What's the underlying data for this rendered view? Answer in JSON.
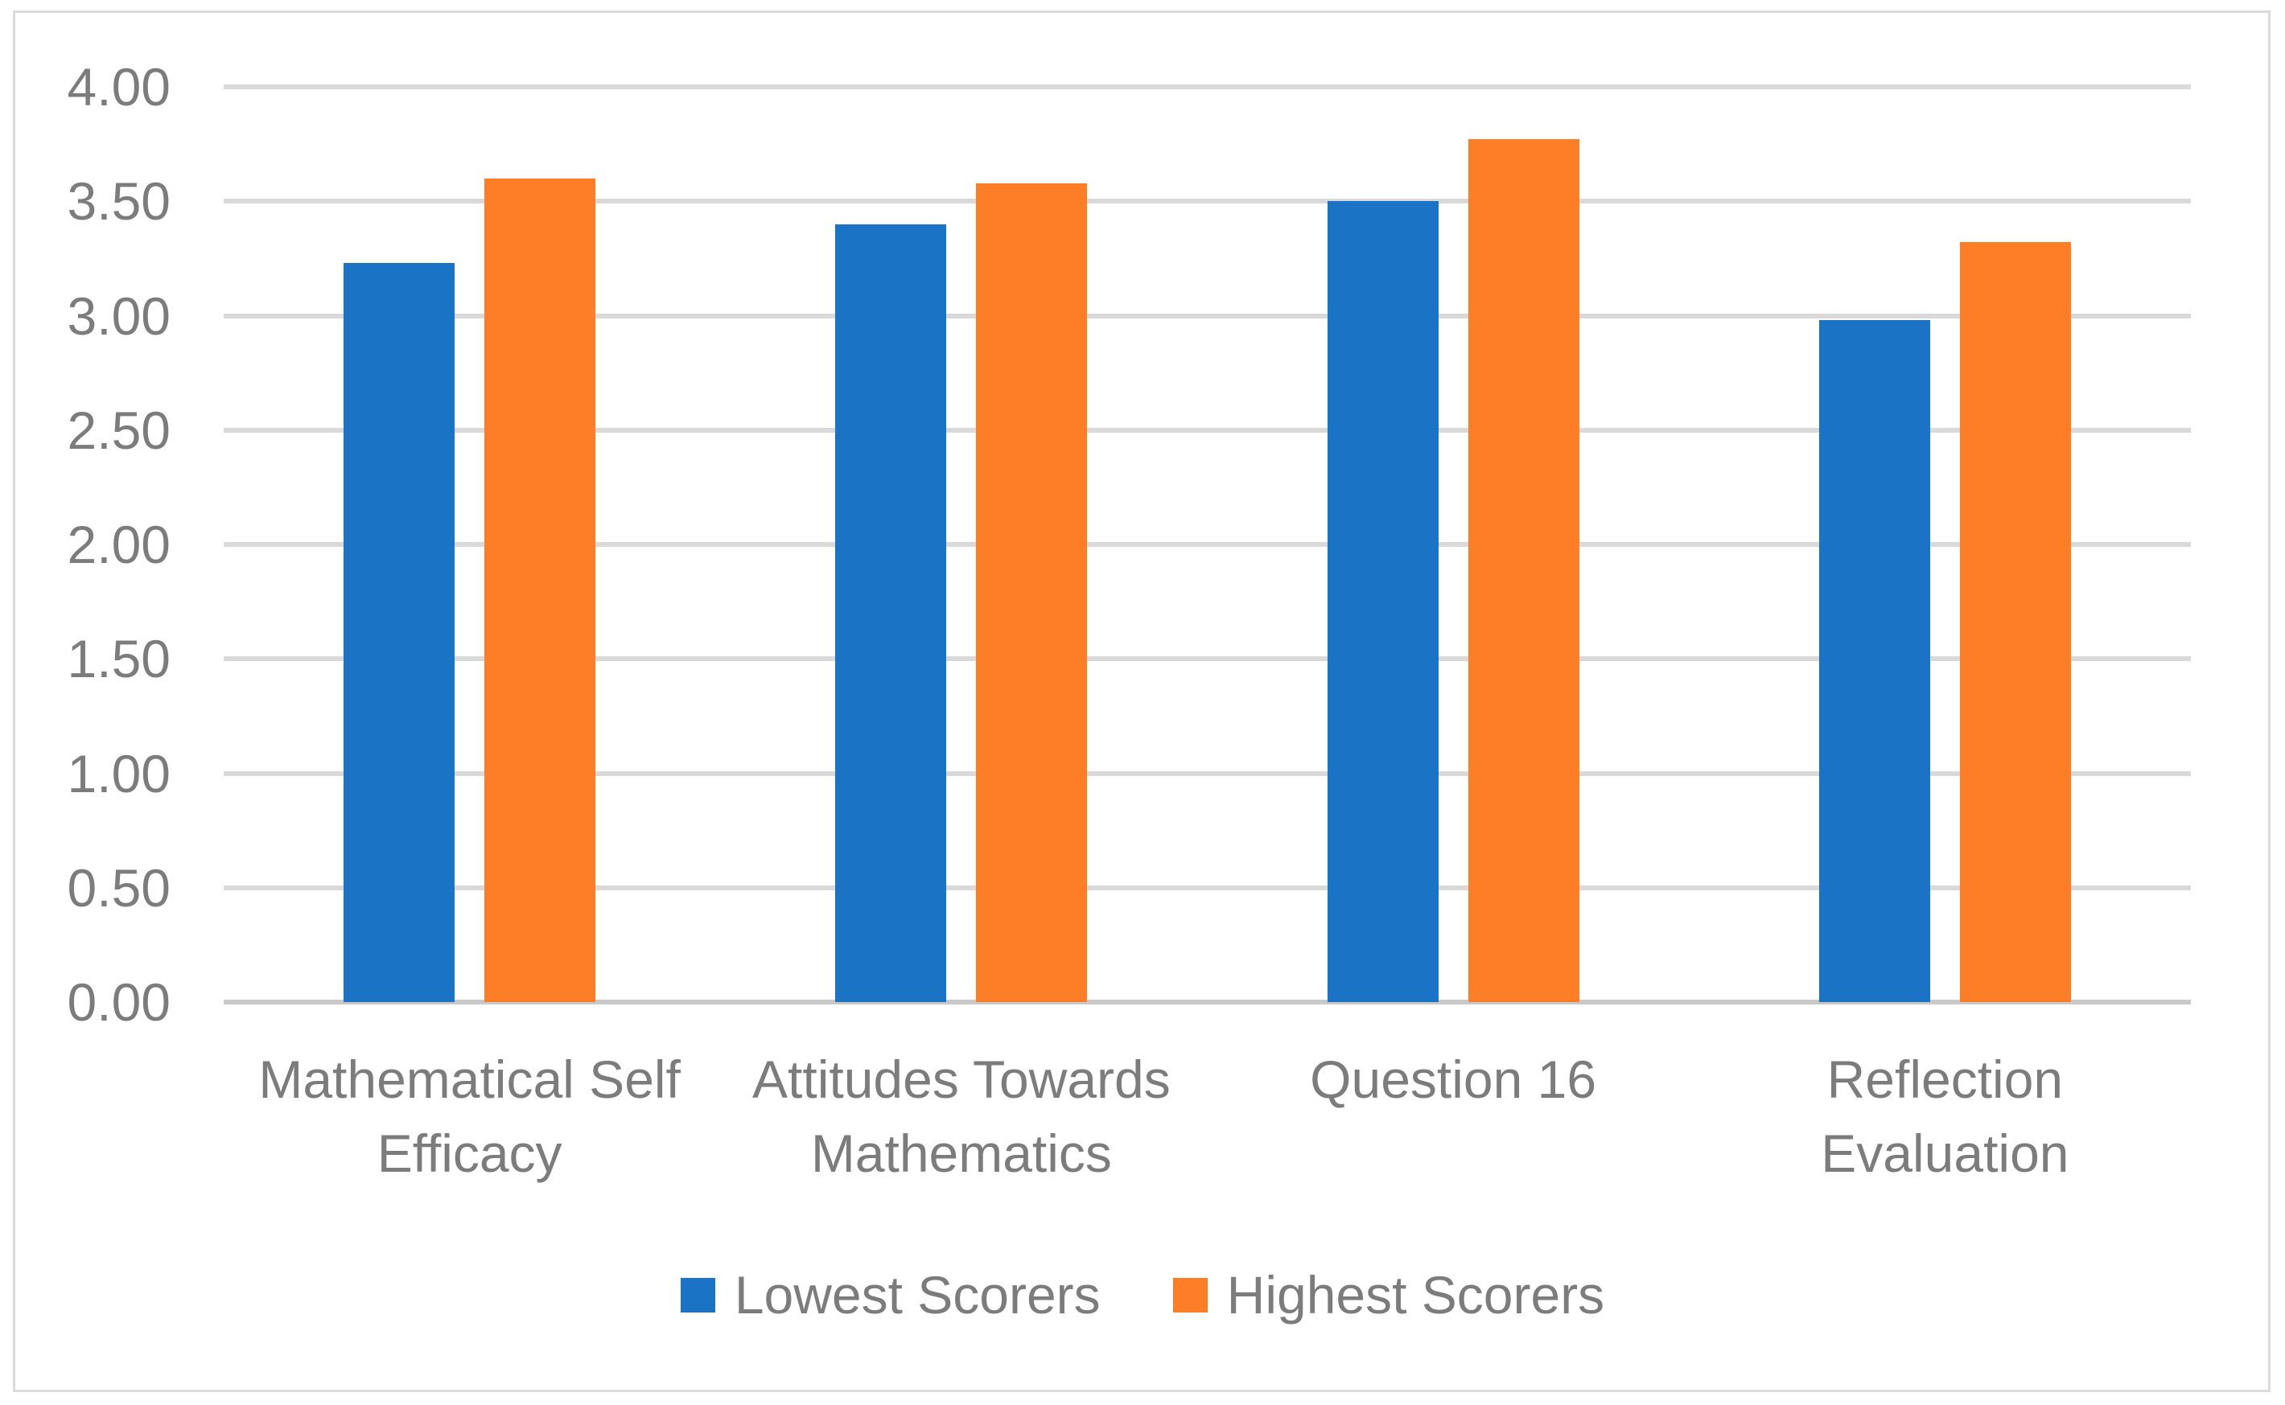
{
  "chart_data": {
    "type": "bar",
    "title": "",
    "xlabel": "",
    "ylabel": "",
    "categories": [
      "Mathematical Self Efficacy",
      "Attitudes Towards Mathematics",
      "Question 16",
      "Reflection Evaluation"
    ],
    "category_label_lines": [
      [
        "Mathematical Self",
        "Efficacy"
      ],
      [
        "Attitudes Towards",
        "Mathematics"
      ],
      [
        "Question 16"
      ],
      [
        "Reflection",
        "Evaluation"
      ]
    ],
    "series": [
      {
        "name": "Lowest Scorers",
        "color": "#1B73C5",
        "values": [
          3.23,
          3.4,
          3.5,
          2.98
        ]
      },
      {
        "name": "Highest Scorers",
        "color": "#FD7E27",
        "values": [
          3.6,
          3.58,
          3.77,
          3.32
        ]
      }
    ],
    "ylim": [
      0,
      4
    ],
    "y_tick_step": 0.5,
    "y_tick_labels": [
      "0.00",
      "0.50",
      "1.00",
      "1.50",
      "2.00",
      "2.50",
      "3.00",
      "3.50",
      "4.00"
    ],
    "grid": true,
    "legend_position": "bottom",
    "gridline_color": "#D9D9D9",
    "axis_line_color": "#C9C9C9",
    "text_color": "#7C7C7C",
    "border_color": "#DBDBDB"
  }
}
